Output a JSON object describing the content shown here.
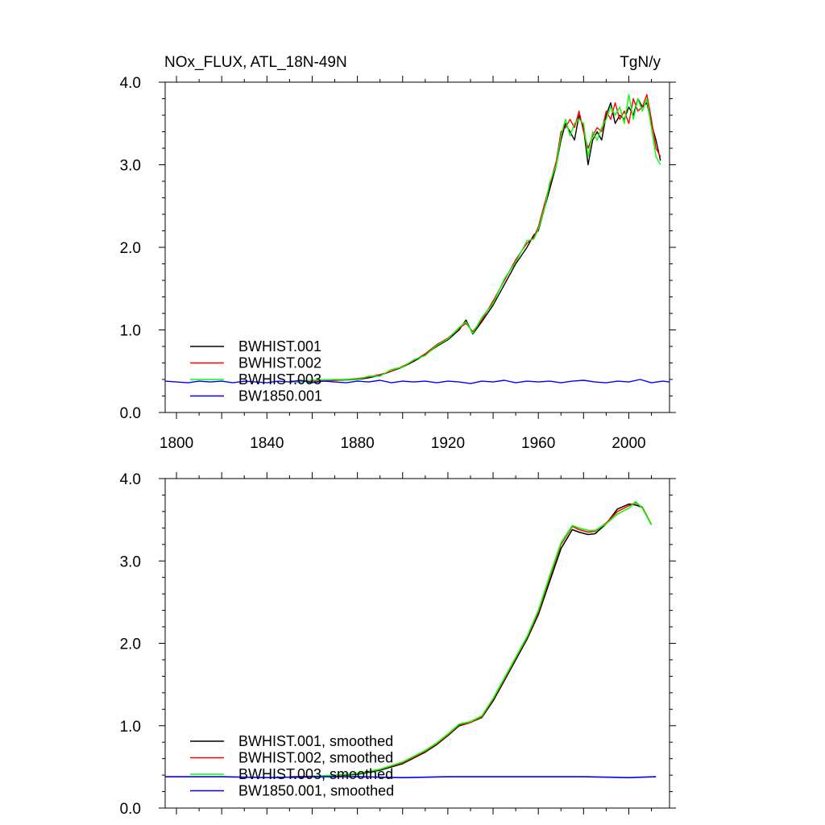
{
  "chart_data": [
    {
      "type": "line",
      "title": "NOx_FLUX, ATL_18N-49N",
      "units": "TgN/y",
      "xlim": [
        1795,
        2018
      ],
      "ylim": [
        0,
        4
      ],
      "x_ticks": [
        "1800",
        "1840",
        "1880",
        "1920",
        "1960",
        "2000"
      ],
      "y_ticks": [
        "0.0",
        "1.0",
        "2.0",
        "3.0",
        "4.0"
      ],
      "legend_position": "lower-left",
      "grid": false,
      "series": [
        {
          "name": "BWHIST.001",
          "color": "#000000",
          "x": [
            1850,
            1860,
            1870,
            1880,
            1885,
            1890,
            1895,
            1900,
            1905,
            1910,
            1915,
            1920,
            1925,
            1928,
            1931,
            1935,
            1940,
            1945,
            1950,
            1955,
            1958,
            1960,
            1963,
            1965,
            1968,
            1970,
            1972,
            1974,
            1976,
            1978,
            1980,
            1982,
            1984,
            1986,
            1988,
            1990,
            1992,
            1994,
            1996,
            1998,
            2000,
            2002,
            2004,
            2006,
            2008,
            2010,
            2012,
            2014
          ],
          "values": [
            0.37,
            0.38,
            0.39,
            0.4,
            0.42,
            0.45,
            0.5,
            0.55,
            0.62,
            0.7,
            0.8,
            0.88,
            1.0,
            1.12,
            0.95,
            1.1,
            1.3,
            1.55,
            1.8,
            2.0,
            2.15,
            2.2,
            2.5,
            2.7,
            3.0,
            3.3,
            3.5,
            3.4,
            3.3,
            3.6,
            3.45,
            3.0,
            3.3,
            3.4,
            3.3,
            3.6,
            3.75,
            3.5,
            3.6,
            3.55,
            3.7,
            3.6,
            3.8,
            3.7,
            3.75,
            3.5,
            3.3,
            3.05
          ]
        },
        {
          "name": "BWHIST.002",
          "color": "#ff0000",
          "x": [
            1850,
            1860,
            1870,
            1880,
            1885,
            1890,
            1895,
            1900,
            1905,
            1910,
            1915,
            1920,
            1925,
            1928,
            1931,
            1935,
            1940,
            1945,
            1950,
            1955,
            1958,
            1960,
            1963,
            1965,
            1968,
            1970,
            1972,
            1974,
            1976,
            1978,
            1980,
            1982,
            1984,
            1986,
            1988,
            1990,
            1992,
            1994,
            1996,
            1998,
            2000,
            2002,
            2004,
            2006,
            2008,
            2010,
            2012,
            2014
          ],
          "values": [
            0.38,
            0.38,
            0.39,
            0.41,
            0.43,
            0.46,
            0.5,
            0.56,
            0.63,
            0.71,
            0.82,
            0.9,
            1.02,
            1.08,
            0.98,
            1.12,
            1.35,
            1.6,
            1.85,
            2.05,
            2.12,
            2.25,
            2.55,
            2.75,
            3.05,
            3.4,
            3.45,
            3.55,
            3.45,
            3.65,
            3.4,
            3.2,
            3.35,
            3.45,
            3.4,
            3.65,
            3.55,
            3.75,
            3.55,
            3.65,
            3.5,
            3.8,
            3.65,
            3.7,
            3.85,
            3.55,
            3.2,
            3.1
          ]
        },
        {
          "name": "BWHIST.003",
          "color": "#00ff00",
          "x": [
            1850,
            1860,
            1870,
            1880,
            1885,
            1890,
            1895,
            1900,
            1905,
            1910,
            1915,
            1920,
            1925,
            1928,
            1931,
            1935,
            1940,
            1945,
            1950,
            1955,
            1958,
            1960,
            1963,
            1965,
            1968,
            1970,
            1972,
            1974,
            1976,
            1978,
            1980,
            1982,
            1984,
            1986,
            1988,
            1990,
            1992,
            1994,
            1996,
            1998,
            2000,
            2002,
            2004,
            2006,
            2008,
            2010,
            2012,
            2014
          ],
          "values": [
            0.37,
            0.39,
            0.4,
            0.4,
            0.44,
            0.44,
            0.52,
            0.55,
            0.64,
            0.69,
            0.81,
            0.89,
            1.03,
            1.1,
            0.96,
            1.15,
            1.32,
            1.62,
            1.82,
            2.08,
            2.1,
            2.22,
            2.5,
            2.78,
            3.0,
            3.35,
            3.55,
            3.35,
            3.5,
            3.55,
            3.5,
            3.1,
            3.4,
            3.3,
            3.45,
            3.55,
            3.7,
            3.6,
            3.7,
            3.5,
            3.85,
            3.55,
            3.8,
            3.65,
            3.8,
            3.45,
            3.1,
            3.0
          ]
        },
        {
          "name": "BW1850.001",
          "color": "#0000ff",
          "x": [
            1795,
            1800,
            1805,
            1810,
            1815,
            1820,
            1825,
            1830,
            1835,
            1840,
            1845,
            1850,
            1855,
            1860,
            1865,
            1870,
            1875,
            1880,
            1885,
            1890,
            1895,
            1900,
            1905,
            1910,
            1915,
            1920,
            1925,
            1930,
            1935,
            1940,
            1945,
            1950,
            1955,
            1960,
            1965,
            1970,
            1975,
            1980,
            1985,
            1990,
            1995,
            2000,
            2005,
            2010,
            2015,
            2018
          ],
          "values": [
            0.38,
            0.37,
            0.36,
            0.38,
            0.37,
            0.38,
            0.36,
            0.38,
            0.37,
            0.36,
            0.38,
            0.37,
            0.39,
            0.36,
            0.38,
            0.37,
            0.36,
            0.38,
            0.37,
            0.39,
            0.36,
            0.38,
            0.37,
            0.38,
            0.36,
            0.38,
            0.37,
            0.35,
            0.38,
            0.37,
            0.39,
            0.36,
            0.38,
            0.37,
            0.38,
            0.36,
            0.38,
            0.39,
            0.37,
            0.36,
            0.38,
            0.37,
            0.4,
            0.36,
            0.38,
            0.37
          ]
        }
      ]
    },
    {
      "type": "line",
      "xlim": [
        1795,
        2018
      ],
      "ylim": [
        0,
        4
      ],
      "y_ticks": [
        "0.0",
        "1.0",
        "2.0",
        "3.0",
        "4.0"
      ],
      "legend_position": "lower-left",
      "grid": false,
      "series": [
        {
          "name": "BWHIST.001, smoothed",
          "color": "#000000",
          "x": [
            1850,
            1870,
            1880,
            1890,
            1900,
            1910,
            1915,
            1920,
            1925,
            1930,
            1935,
            1940,
            1945,
            1950,
            1955,
            1960,
            1965,
            1970,
            1975,
            1978,
            1982,
            1985,
            1990,
            1995,
            2000,
            2003,
            2006,
            2010
          ],
          "values": [
            0.37,
            0.39,
            0.41,
            0.46,
            0.54,
            0.68,
            0.77,
            0.88,
            1.0,
            1.04,
            1.1,
            1.3,
            1.55,
            1.8,
            2.05,
            2.35,
            2.75,
            3.15,
            3.38,
            3.35,
            3.32,
            3.33,
            3.45,
            3.63,
            3.69,
            3.68,
            3.65,
            3.44
          ]
        },
        {
          "name": "BWHIST.002, smoothed",
          "color": "#ff0000",
          "x": [
            1850,
            1870,
            1880,
            1890,
            1900,
            1910,
            1915,
            1920,
            1925,
            1930,
            1935,
            1940,
            1945,
            1950,
            1955,
            1960,
            1965,
            1970,
            1975,
            1978,
            1982,
            1985,
            1990,
            1995,
            2000,
            2003,
            2006,
            2010
          ],
          "values": [
            0.38,
            0.39,
            0.42,
            0.47,
            0.55,
            0.69,
            0.78,
            0.89,
            1.01,
            1.04,
            1.11,
            1.32,
            1.57,
            1.82,
            2.07,
            2.38,
            2.8,
            3.2,
            3.42,
            3.38,
            3.35,
            3.36,
            3.46,
            3.6,
            3.67,
            3.71,
            3.65,
            3.44
          ]
        },
        {
          "name": "BWHIST.003, smoothed",
          "color": "#00ff00",
          "x": [
            1850,
            1870,
            1880,
            1890,
            1900,
            1910,
            1915,
            1920,
            1925,
            1930,
            1935,
            1940,
            1945,
            1950,
            1955,
            1960,
            1965,
            1970,
            1975,
            1978,
            1982,
            1985,
            1990,
            1995,
            2000,
            2003,
            2006,
            2010
          ],
          "values": [
            0.37,
            0.4,
            0.42,
            0.47,
            0.56,
            0.7,
            0.79,
            0.9,
            1.02,
            1.05,
            1.12,
            1.33,
            1.58,
            1.83,
            2.08,
            2.4,
            2.82,
            3.22,
            3.43,
            3.4,
            3.37,
            3.37,
            3.45,
            3.57,
            3.64,
            3.72,
            3.64,
            3.44
          ]
        },
        {
          "name": "BW1850.001, smoothed",
          "color": "#0000ff",
          "x": [
            1795,
            1820,
            1840,
            1860,
            1880,
            1900,
            1920,
            1940,
            1960,
            1980,
            2000,
            2012
          ],
          "values": [
            0.38,
            0.38,
            0.37,
            0.38,
            0.38,
            0.37,
            0.38,
            0.38,
            0.38,
            0.38,
            0.37,
            0.38
          ]
        }
      ]
    }
  ]
}
